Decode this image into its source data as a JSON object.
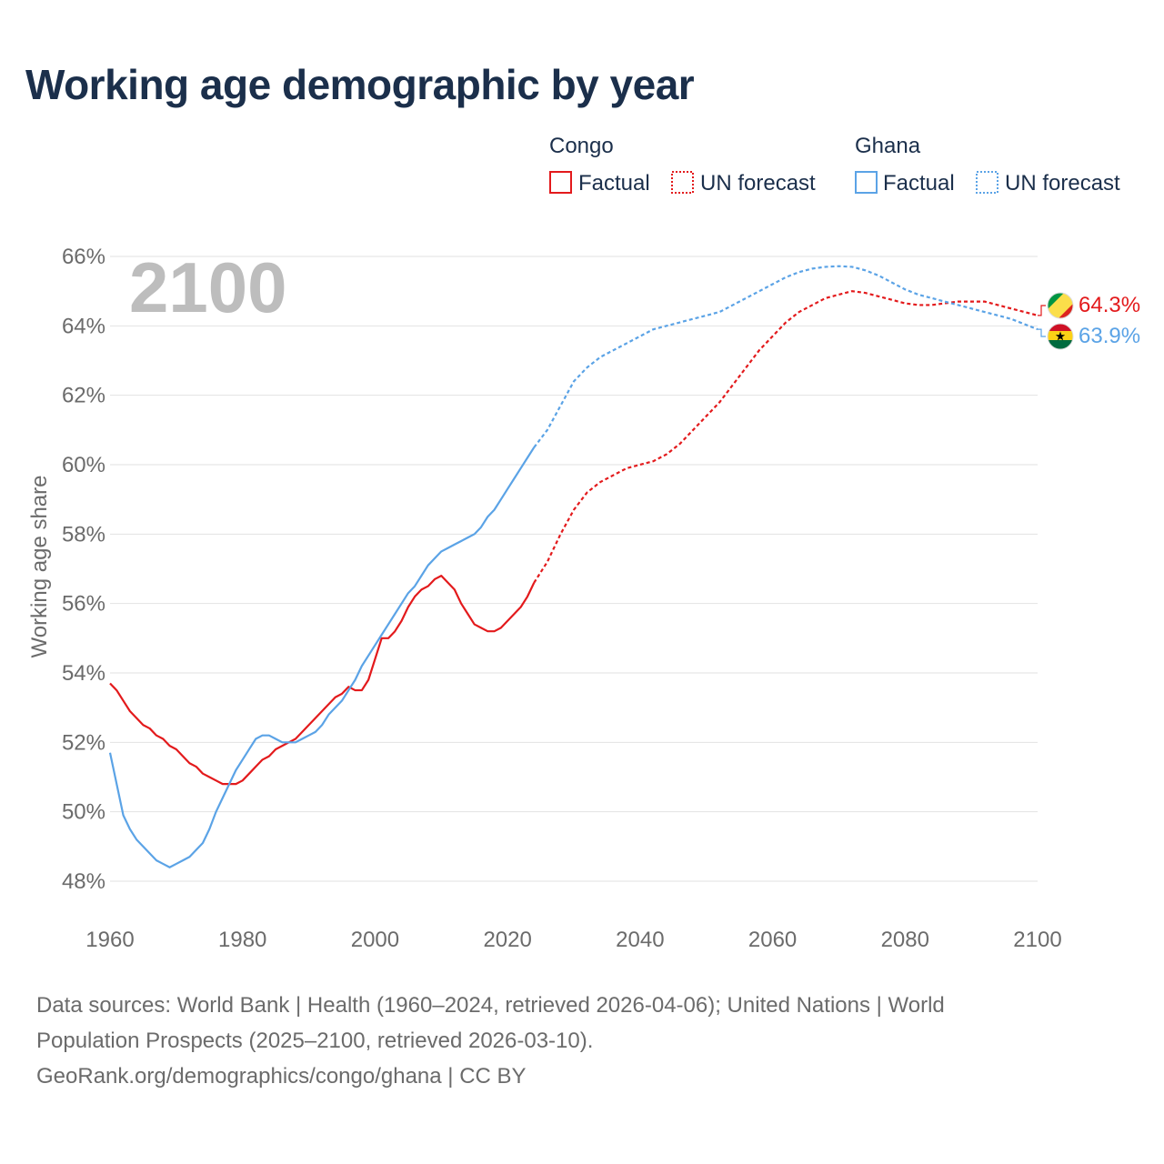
{
  "title": "Working age demographic by year",
  "chart_data": {
    "type": "line",
    "title": "Working age demographic by year",
    "ylabel": "Working age share",
    "xlabel": "",
    "xlim": [
      1960,
      2100
    ],
    "ylim": [
      47,
      66.5
    ],
    "xticks": [
      1960,
      1980,
      2000,
      2020,
      2040,
      2060,
      2080,
      2100
    ],
    "xtick_labels": [
      "1960",
      "1980",
      "2000",
      "2020",
      "2040",
      "2060",
      "2080",
      "2100"
    ],
    "yticks": [
      48,
      50,
      52,
      54,
      56,
      58,
      60,
      62,
      64,
      66
    ],
    "ytick_labels": [
      "48%",
      "50%",
      "52%",
      "54%",
      "56%",
      "58%",
      "60%",
      "62%",
      "64%",
      "66%"
    ],
    "grid": true,
    "year_watermark": "2100",
    "legend": {
      "groups": [
        {
          "name": "Congo",
          "items": [
            "Factual",
            "UN forecast"
          ]
        },
        {
          "name": "Ghana",
          "items": [
            "Factual",
            "UN forecast"
          ]
        }
      ],
      "placement": "top-right"
    },
    "series": [
      {
        "name": "Congo",
        "segment": "Factual",
        "color": "#e31a1c",
        "style": "solid",
        "x": [
          1960,
          1961,
          1962,
          1963,
          1964,
          1965,
          1966,
          1967,
          1968,
          1969,
          1970,
          1971,
          1972,
          1973,
          1974,
          1975,
          1976,
          1977,
          1978,
          1979,
          1980,
          1981,
          1982,
          1983,
          1984,
          1985,
          1986,
          1987,
          1988,
          1989,
          1990,
          1991,
          1992,
          1993,
          1994,
          1995,
          1996,
          1997,
          1998,
          1999,
          2000,
          2001,
          2002,
          2003,
          2004,
          2005,
          2006,
          2007,
          2008,
          2009,
          2010,
          2011,
          2012,
          2013,
          2014,
          2015,
          2016,
          2017,
          2018,
          2019,
          2020,
          2021,
          2022,
          2023,
          2024
        ],
        "y": [
          53.7,
          53.5,
          53.2,
          52.9,
          52.7,
          52.5,
          52.4,
          52.2,
          52.1,
          51.9,
          51.8,
          51.6,
          51.4,
          51.3,
          51.1,
          51.0,
          50.9,
          50.8,
          50.8,
          50.8,
          50.9,
          51.1,
          51.3,
          51.5,
          51.6,
          51.8,
          51.9,
          52.0,
          52.1,
          52.3,
          52.5,
          52.7,
          52.9,
          53.1,
          53.3,
          53.4,
          53.6,
          53.5,
          53.5,
          53.8,
          54.4,
          55.0,
          55.0,
          55.2,
          55.5,
          55.9,
          56.2,
          56.4,
          56.5,
          56.7,
          56.8,
          56.6,
          56.4,
          56.0,
          55.7,
          55.4,
          55.3,
          55.2,
          55.2,
          55.3,
          55.5,
          55.7,
          55.9,
          56.2,
          56.6
        ]
      },
      {
        "name": "Congo",
        "segment": "UN forecast",
        "color": "#e31a1c",
        "style": "dashed",
        "x": [
          2024,
          2026,
          2028,
          2030,
          2032,
          2034,
          2036,
          2038,
          2040,
          2042,
          2044,
          2046,
          2048,
          2050,
          2052,
          2054,
          2056,
          2058,
          2060,
          2062,
          2064,
          2066,
          2068,
          2070,
          2072,
          2074,
          2076,
          2078,
          2080,
          2082,
          2084,
          2086,
          2088,
          2090,
          2092,
          2094,
          2096,
          2098,
          2100
        ],
        "y": [
          56.6,
          57.2,
          58.0,
          58.7,
          59.2,
          59.5,
          59.7,
          59.9,
          60.0,
          60.1,
          60.3,
          60.6,
          61.0,
          61.4,
          61.8,
          62.3,
          62.8,
          63.3,
          63.7,
          64.1,
          64.4,
          64.6,
          64.8,
          64.9,
          65.0,
          64.95,
          64.85,
          64.75,
          64.65,
          64.6,
          64.6,
          64.65,
          64.7,
          64.7,
          64.7,
          64.6,
          64.5,
          64.4,
          64.3
        ]
      },
      {
        "name": "Ghana",
        "segment": "Factual",
        "color": "#5ba3e6",
        "style": "solid",
        "x": [
          1960,
          1961,
          1962,
          1963,
          1964,
          1965,
          1966,
          1967,
          1968,
          1969,
          1970,
          1971,
          1972,
          1973,
          1974,
          1975,
          1976,
          1977,
          1978,
          1979,
          1980,
          1981,
          1982,
          1983,
          1984,
          1985,
          1986,
          1987,
          1988,
          1989,
          1990,
          1991,
          1992,
          1993,
          1994,
          1995,
          1996,
          1997,
          1998,
          1999,
          2000,
          2001,
          2002,
          2003,
          2004,
          2005,
          2006,
          2007,
          2008,
          2009,
          2010,
          2011,
          2012,
          2013,
          2014,
          2015,
          2016,
          2017,
          2018,
          2019,
          2020,
          2021,
          2022,
          2023,
          2024
        ],
        "y": [
          51.7,
          50.8,
          49.9,
          49.5,
          49.2,
          49.0,
          48.8,
          48.6,
          48.5,
          48.4,
          48.5,
          48.6,
          48.7,
          48.9,
          49.1,
          49.5,
          50.0,
          50.4,
          50.8,
          51.2,
          51.5,
          51.8,
          52.1,
          52.2,
          52.2,
          52.1,
          52.0,
          52.0,
          52.0,
          52.1,
          52.2,
          52.3,
          52.5,
          52.8,
          53.0,
          53.2,
          53.5,
          53.8,
          54.2,
          54.5,
          54.8,
          55.1,
          55.4,
          55.7,
          56.0,
          56.3,
          56.5,
          56.8,
          57.1,
          57.3,
          57.5,
          57.6,
          57.7,
          57.8,
          57.9,
          58.0,
          58.2,
          58.5,
          58.7,
          59.0,
          59.3,
          59.6,
          59.9,
          60.2,
          60.5
        ]
      },
      {
        "name": "Ghana",
        "segment": "UN forecast",
        "color": "#5ba3e6",
        "style": "dashed",
        "x": [
          2024,
          2026,
          2028,
          2030,
          2032,
          2034,
          2036,
          2038,
          2040,
          2042,
          2044,
          2046,
          2048,
          2050,
          2052,
          2054,
          2056,
          2058,
          2060,
          2062,
          2064,
          2066,
          2068,
          2070,
          2072,
          2074,
          2076,
          2078,
          2080,
          2082,
          2084,
          2086,
          2088,
          2090,
          2092,
          2094,
          2096,
          2098,
          2100
        ],
        "y": [
          60.5,
          61.0,
          61.7,
          62.4,
          62.8,
          63.1,
          63.3,
          63.5,
          63.7,
          63.9,
          64.0,
          64.1,
          64.2,
          64.3,
          64.4,
          64.6,
          64.8,
          65.0,
          65.2,
          65.4,
          65.55,
          65.65,
          65.7,
          65.72,
          65.7,
          65.6,
          65.45,
          65.25,
          65.05,
          64.9,
          64.8,
          64.7,
          64.6,
          64.5,
          64.4,
          64.3,
          64.2,
          64.05,
          63.9
        ]
      }
    ],
    "end_labels": [
      {
        "country": "Congo",
        "value": 64.3,
        "text": "64.3%",
        "flag": "congo-flag-icon"
      },
      {
        "country": "Ghana",
        "value": 63.9,
        "text": "63.9%",
        "flag": "ghana-flag-icon"
      }
    ]
  },
  "footer": {
    "line1": "Data sources: World Bank | Health (1960–2024, retrieved 2026-04-06); United Nations | World",
    "line2": "Population Prospects (2025–2100, retrieved 2026-03-10).",
    "line3": "GeoRank.org/demographics/congo/ghana | CC BY"
  }
}
